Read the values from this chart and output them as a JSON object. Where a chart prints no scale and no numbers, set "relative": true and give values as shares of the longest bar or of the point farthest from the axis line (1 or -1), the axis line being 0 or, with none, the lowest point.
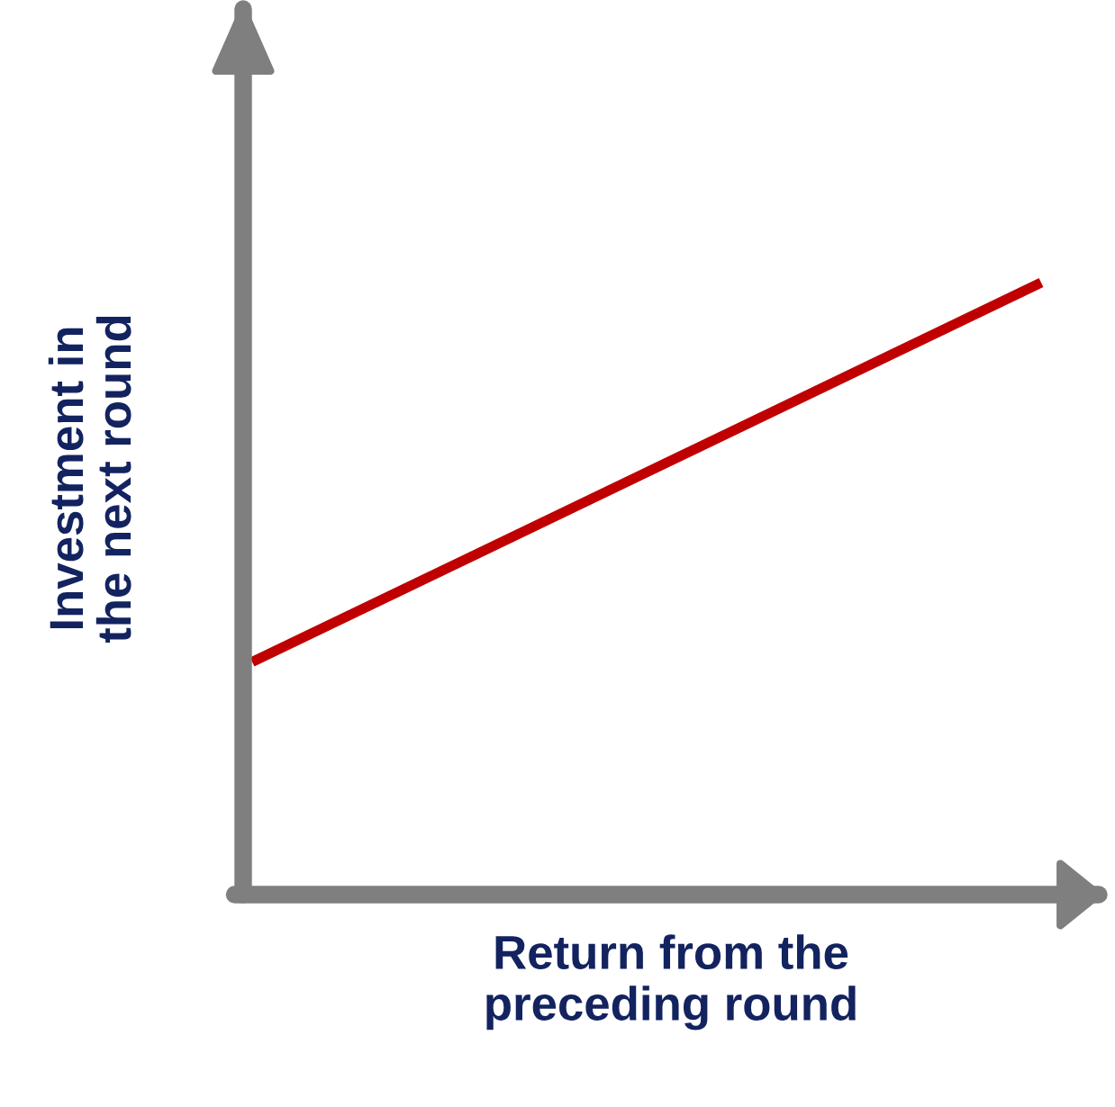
{
  "chart_data": {
    "type": "line",
    "relative": true,
    "xlabel": "Return from the\npreceding round",
    "ylabel": "Investment in\nthe next round",
    "categories": [
      null,
      null
    ],
    "series": [
      {
        "color": "#c00000",
        "values": [
          0.38,
          1
        ]
      }
    ],
    "ref_lines": [
      {
        "axis": "y",
        "value": 0,
        "color": "#7f7f7f"
      }
    ],
    "grid": false,
    "legend": false
  }
}
